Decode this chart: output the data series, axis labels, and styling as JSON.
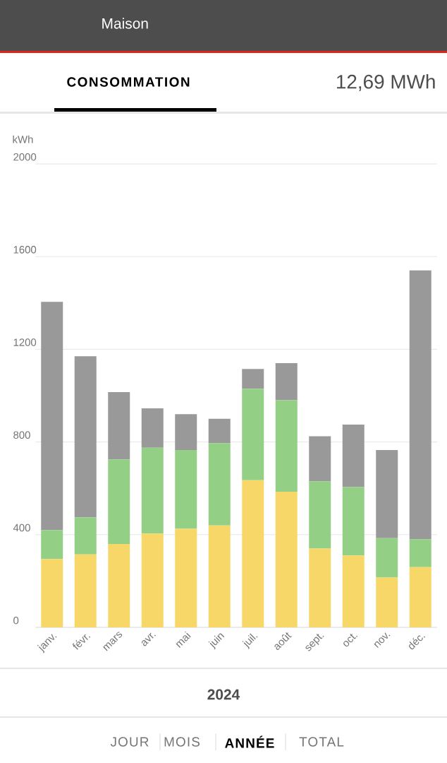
{
  "chart_data": {
    "type": "bar",
    "stacked": true,
    "ylabel": "kWh",
    "categories": [
      "janv.",
      "févr.",
      "mars",
      "avr.",
      "mai",
      "juin",
      "juil.",
      "août",
      "sept.",
      "oct.",
      "nov.",
      "déc."
    ],
    "series": [
      {
        "color": "#f7d768",
        "values": [
          295,
          315,
          360,
          405,
          425,
          440,
          635,
          585,
          340,
          310,
          215,
          260
        ]
      },
      {
        "color": "#93cf84",
        "values": [
          125,
          160,
          365,
          370,
          340,
          355,
          395,
          395,
          290,
          295,
          170,
          120
        ]
      },
      {
        "color": "#999999",
        "values": [
          985,
          695,
          290,
          170,
          155,
          105,
          85,
          160,
          195,
          270,
          380,
          1160
        ]
      }
    ],
    "ylim": [
      0,
      2000
    ],
    "yticks": [
      0,
      400,
      800,
      1200,
      1600,
      2000
    ],
    "grid": "y",
    "annotations": [
      "Maison",
      "CONSOMMATION",
      "12,69 MWh",
      "2024",
      "JOUR",
      "MOIS",
      "ANNÉE",
      "TOTAL"
    ]
  }
}
